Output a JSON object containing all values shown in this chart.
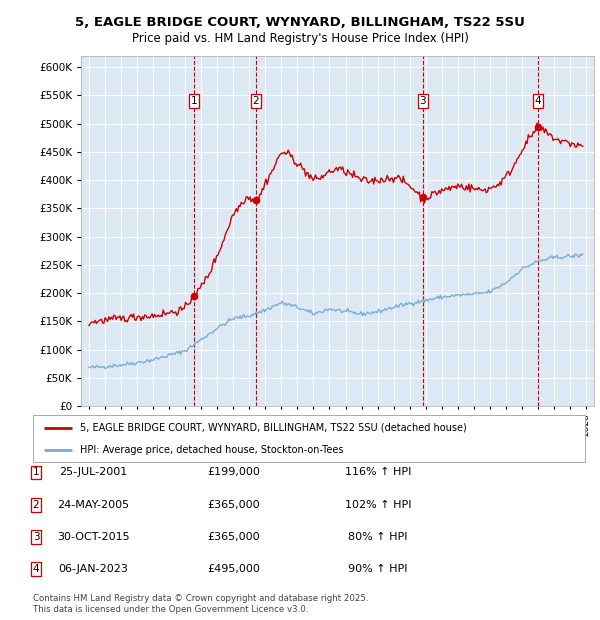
{
  "title_line1": "5, EAGLE BRIDGE COURT, WYNYARD, BILLINGHAM, TS22 5SU",
  "title_line2": "Price paid vs. HM Land Registry's House Price Index (HPI)",
  "ylim": [
    0,
    620000
  ],
  "yticks": [
    0,
    50000,
    100000,
    150000,
    200000,
    250000,
    300000,
    350000,
    400000,
    450000,
    500000,
    550000,
    600000
  ],
  "xlim_start": 1994.5,
  "xlim_end": 2026.5,
  "plot_bg_color": "#dce9f5",
  "grid_color": "#ffffff",
  "red_line_color": "#cc0000",
  "blue_line_color": "#7aadd4",
  "transactions": [
    {
      "label": "1",
      "date": "25-JUL-2001",
      "price": 199000,
      "year": 2001.56,
      "pct": "116%",
      "dir": "↑"
    },
    {
      "label": "2",
      "date": "24-MAY-2005",
      "price": 365000,
      "year": 2005.4,
      "pct": "102%",
      "dir": "↑"
    },
    {
      "label": "3",
      "date": "30-OCT-2015",
      "price": 365000,
      "year": 2015.83,
      "pct": "80%",
      "dir": "↑"
    },
    {
      "label": "4",
      "date": "06-JAN-2023",
      "price": 495000,
      "year": 2023.02,
      "pct": "90%",
      "dir": "↑"
    }
  ],
  "legend_line1": "5, EAGLE BRIDGE COURT, WYNYARD, BILLINGHAM, TS22 5SU (detached house)",
  "legend_line2": "HPI: Average price, detached house, Stockton-on-Tees",
  "footer": "Contains HM Land Registry data © Crown copyright and database right 2025.\nThis data is licensed under the Open Government Licence v3.0."
}
